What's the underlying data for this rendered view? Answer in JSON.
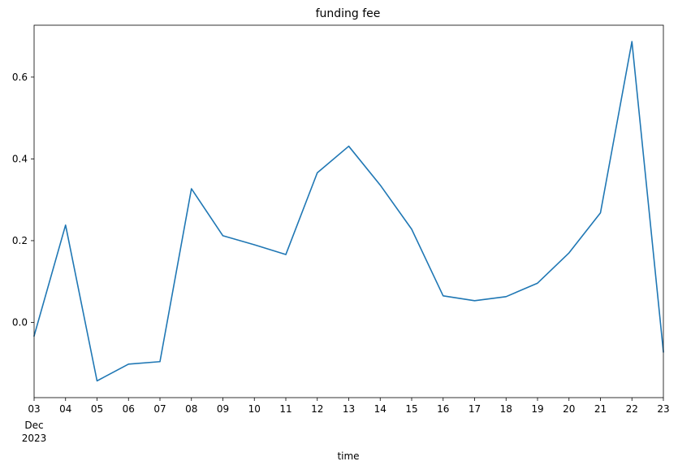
{
  "chart_data": {
    "type": "line",
    "title": "funding fee",
    "xlabel": "time",
    "ylabel": "",
    "x_tick_labels": [
      "03",
      "04",
      "05",
      "06",
      "07",
      "08",
      "09",
      "10",
      "11",
      "12",
      "13",
      "14",
      "15",
      "16",
      "17",
      "18",
      "19",
      "20",
      "21",
      "22",
      "23"
    ],
    "x_tick_sublabels": [
      "Dec",
      "2023"
    ],
    "x": [
      "2023-12-03",
      "2023-12-04",
      "2023-12-05",
      "2023-12-06",
      "2023-12-07",
      "2023-12-08",
      "2023-12-09",
      "2023-12-10",
      "2023-12-11",
      "2023-12-12",
      "2023-12-13",
      "2023-12-14",
      "2023-12-15",
      "2023-12-16",
      "2023-12-17",
      "2023-12-18",
      "2023-12-19",
      "2023-12-20",
      "2023-12-21",
      "2023-12-22",
      "2023-12-23"
    ],
    "series": [
      {
        "color": "#1f77b4",
        "values": [
          -0.033,
          0.238,
          -0.143,
          -0.102,
          -0.096,
          0.327,
          0.212,
          0.19,
          0.166,
          0.366,
          0.431,
          0.336,
          0.228,
          0.065,
          0.053,
          0.063,
          0.096,
          0.17,
          0.268,
          0.687,
          -0.072
        ]
      }
    ],
    "xlim": [
      "2023-12-03",
      "2023-12-23"
    ],
    "ylim": [
      -0.184,
      0.727
    ],
    "y_ticks": [
      0.0,
      0.2,
      0.4,
      0.6
    ],
    "y_tick_labels": [
      "0.0",
      "0.2",
      "0.4",
      "0.6"
    ],
    "grid": false
  }
}
